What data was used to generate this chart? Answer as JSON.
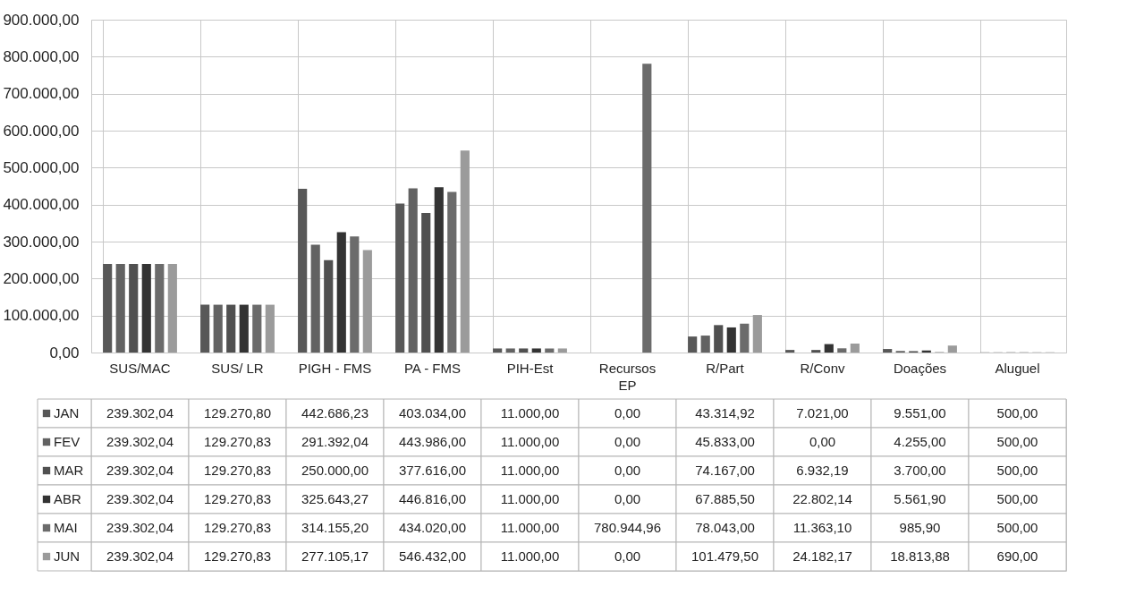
{
  "chart_data": {
    "type": "bar",
    "categories": [
      "SUS/MAC",
      "SUS/ LR",
      "PIGH - FMS",
      "PA - FMS",
      "PIH-Est",
      "Recursos EP",
      "R/Part",
      "R/Conv",
      "Doações",
      "Aluguel"
    ],
    "series": [
      {
        "name": "JAN",
        "color": "#585858",
        "values": [
          239302.04,
          129270.8,
          442686.23,
          403034.0,
          11000.0,
          0.0,
          43314.92,
          7021.0,
          9551.0,
          500.0
        ],
        "value_labels": [
          "239.302,04",
          "129.270,80",
          "442.686,23",
          "403.034,00",
          "11.000,00",
          "0,00",
          "43.314,92",
          "7.021,00",
          "9.551,00",
          "500,00"
        ]
      },
      {
        "name": "FEV",
        "color": "#626262",
        "values": [
          239302.04,
          129270.83,
          291392.04,
          443986.0,
          11000.0,
          0.0,
          45833.0,
          0.0,
          4255.0,
          500.0
        ],
        "value_labels": [
          "239.302,04",
          "129.270,83",
          "291.392,04",
          "443.986,00",
          "11.000,00",
          "0,00",
          "45.833,00",
          "0,00",
          "4.255,00",
          "500,00"
        ]
      },
      {
        "name": "MAR",
        "color": "#505050",
        "values": [
          239302.04,
          129270.83,
          250000.0,
          377616.0,
          11000.0,
          0.0,
          74167.0,
          6932.19,
          3700.0,
          500.0
        ],
        "value_labels": [
          "239.302,04",
          "129.270,83",
          "250.000,00",
          "377.616,00",
          "11.000,00",
          "0,00",
          "74.167,00",
          "6.932,19",
          "3.700,00",
          "500,00"
        ]
      },
      {
        "name": "ABR",
        "color": "#333333",
        "values": [
          239302.04,
          129270.83,
          325643.27,
          446816.0,
          11000.0,
          0.0,
          67885.5,
          22802.14,
          5561.9,
          500.0
        ],
        "value_labels": [
          "239.302,04",
          "129.270,83",
          "325.643,27",
          "446.816,00",
          "11.000,00",
          "0,00",
          "67.885,50",
          "22.802,14",
          "5.561,90",
          "500,00"
        ]
      },
      {
        "name": "MAI",
        "color": "#6b6b6b",
        "values": [
          239302.04,
          129270.83,
          314155.2,
          434020.0,
          11000.0,
          780944.96,
          78043.0,
          11363.1,
          985.9,
          500.0
        ],
        "value_labels": [
          "239.302,04",
          "129.270,83",
          "314.155,20",
          "434.020,00",
          "11.000,00",
          "780.944,96",
          "78.043,00",
          "11.363,10",
          "985,90",
          "500,00"
        ]
      },
      {
        "name": "JUN",
        "color": "#9b9b9b",
        "values": [
          239302.04,
          129270.83,
          277105.17,
          546432.0,
          11000.0,
          0.0,
          101479.5,
          24182.17,
          18813.88,
          690.0
        ],
        "value_labels": [
          "239.302,04",
          "129.270,83",
          "277.105,17",
          "546.432,00",
          "11.000,00",
          "0,00",
          "101.479,50",
          "24.182,17",
          "18.813,88",
          "690,00"
        ]
      }
    ],
    "ylim": [
      0,
      900000
    ],
    "yticks": [
      {
        "value": 0,
        "label": "0,00"
      },
      {
        "value": 100000,
        "label": "100.000,00"
      },
      {
        "value": 200000,
        "label": "200.000,00"
      },
      {
        "value": 300000,
        "label": "300.000,00"
      },
      {
        "value": 400000,
        "label": "400.000,00"
      },
      {
        "value": 500000,
        "label": "500.000,00"
      },
      {
        "value": 600000,
        "label": "600.000,00"
      },
      {
        "value": 700000,
        "label": "700.000,00"
      },
      {
        "value": 800000,
        "label": "800.000,00"
      },
      {
        "value": 900000,
        "label": "900.000,00"
      }
    ],
    "grid": true,
    "legend": "bottom"
  }
}
